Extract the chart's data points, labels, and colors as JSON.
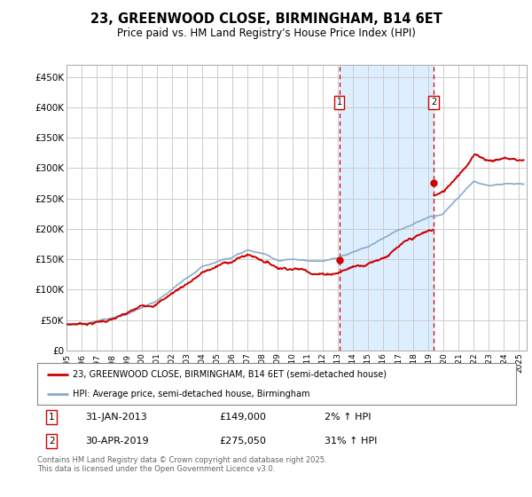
{
  "title": "23, GREENWOOD CLOSE, BIRMINGHAM, B14 6ET",
  "subtitle": "Price paid vs. HM Land Registry's House Price Index (HPI)",
  "ylabel_ticks": [
    "£0",
    "£50K",
    "£100K",
    "£150K",
    "£200K",
    "£250K",
    "£300K",
    "£350K",
    "£400K",
    "£450K"
  ],
  "ytick_values": [
    0,
    50000,
    100000,
    150000,
    200000,
    250000,
    300000,
    350000,
    400000,
    450000
  ],
  "ylim": [
    0,
    470000
  ],
  "xlim_start": 1995.0,
  "xlim_end": 2025.5,
  "marker1_x": 2013.083,
  "marker1_y": 149000,
  "marker1_label": "1",
  "marker1_date": "31-JAN-2013",
  "marker1_price": "£149,000",
  "marker1_hpi": "2% ↑ HPI",
  "marker2_x": 2019.33,
  "marker2_y": 275050,
  "marker2_label": "2",
  "marker2_date": "30-APR-2019",
  "marker2_price": "£275,050",
  "marker2_hpi": "31% ↑ HPI",
  "line1_color": "#cc0000",
  "line2_color": "#88aacc",
  "shaded_color": "#ddeeff",
  "vline_color": "#cc0000",
  "legend1_label": "23, GREENWOOD CLOSE, BIRMINGHAM, B14 6ET (semi-detached house)",
  "legend2_label": "HPI: Average price, semi-detached house, Birmingham",
  "footer": "Contains HM Land Registry data © Crown copyright and database right 2025.\nThis data is licensed under the Open Government Licence v3.0.",
  "background_color": "#ffffff",
  "grid_color": "#cccccc",
  "hpi_anchor_years": [
    1995,
    1996,
    1997,
    1998,
    1999,
    2000,
    2001,
    2002,
    2003,
    2004,
    2005,
    2006,
    2007,
    2008,
    2009,
    2010,
    2011,
    2012,
    2013,
    2014,
    2015,
    2016,
    2017,
    2018,
    2019,
    2020,
    2021,
    2022,
    2023,
    2024,
    2025
  ],
  "hpi_index": [
    32,
    34,
    37,
    41,
    46,
    54,
    61,
    74,
    88,
    101,
    109,
    116,
    124,
    119,
    111,
    113,
    111,
    109,
    113,
    121,
    128,
    138,
    150,
    158,
    165,
    169,
    189,
    209,
    205,
    208,
    207
  ]
}
